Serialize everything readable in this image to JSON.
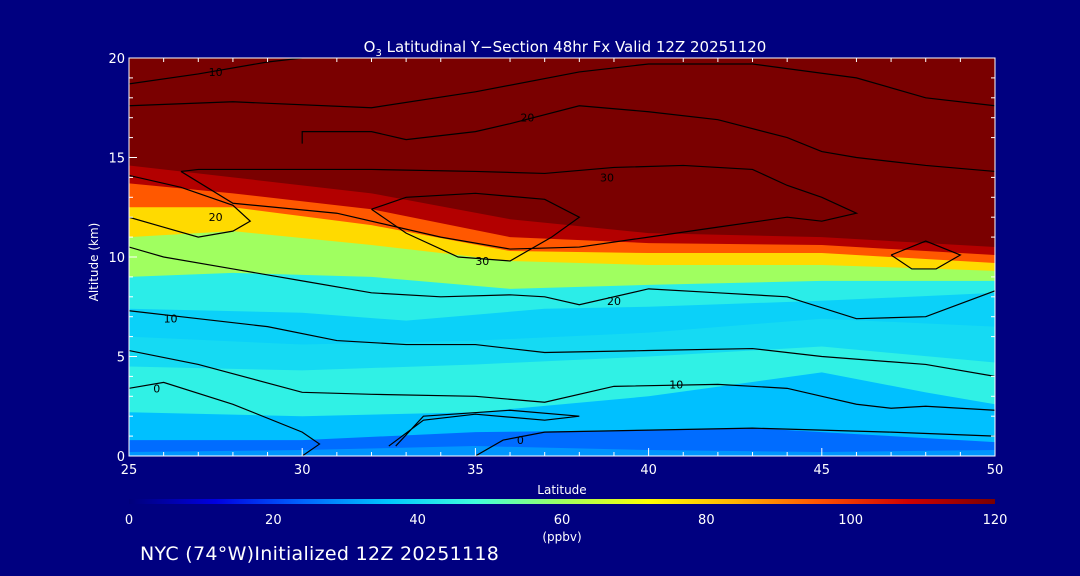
{
  "footer": "NYC (74°W)Initialized 12Z 20251118",
  "chart_data": {
    "type": "heatmap",
    "subtype": "filled-contour",
    "title": "O₃ Latitudinal Y−Section 48hr  Fx Valid 12Z 20251120",
    "title_main": "O",
    "title_sub": "3",
    "title_rest": " Latitudinal Y−Section 48hr  Fx Valid 12Z 20251120",
    "xlabel": "Latitude",
    "ylabel": "Altitude (km)",
    "xlim": [
      25,
      50
    ],
    "ylim": [
      0,
      20
    ],
    "xticks": [
      25,
      30,
      35,
      40,
      45,
      50
    ],
    "yticks": [
      0,
      5,
      10,
      15,
      20
    ],
    "colorbar": {
      "label": "(ppbv)",
      "range": [
        0,
        120
      ],
      "ticks": [
        0,
        20,
        40,
        60,
        80,
        100,
        120
      ],
      "colors": [
        "#00007a",
        "#0000e0",
        "#0064ff",
        "#00c8ff",
        "#40ffdc",
        "#a0ff60",
        "#ffff00",
        "#ffb400",
        "#ff5000",
        "#d00000",
        "#7a0000"
      ]
    },
    "bands": [
      {
        "ppbv": 30,
        "upper": [
          [
            25,
            0.2
          ],
          [
            30,
            0.3
          ],
          [
            35,
            0.5
          ],
          [
            40,
            0.3
          ],
          [
            45,
            0.2
          ],
          [
            50,
            0.3
          ]
        ]
      },
      {
        "ppbv": 25,
        "upper": [
          [
            25,
            0.8
          ],
          [
            30,
            0.8
          ],
          [
            35,
            1.2
          ],
          [
            40,
            1.3
          ],
          [
            43,
            1.4
          ],
          [
            46,
            1.1
          ],
          [
            50,
            0.7
          ]
        ]
      },
      {
        "ppbv": 35,
        "upper": [
          [
            25,
            2.2
          ],
          [
            30,
            2.0
          ],
          [
            35,
            2.2
          ],
          [
            40,
            3.0
          ],
          [
            45,
            4.2
          ],
          [
            48,
            3.2
          ],
          [
            50,
            2.6
          ]
        ]
      },
      {
        "ppbv": 45,
        "upper": [
          [
            25,
            4.5
          ],
          [
            30,
            4.3
          ],
          [
            35,
            4.6
          ],
          [
            40,
            5.0
          ],
          [
            45,
            5.5
          ],
          [
            50,
            4.7
          ]
        ]
      },
      {
        "ppbv": 40,
        "upper": [
          [
            25,
            6.0
          ],
          [
            30,
            5.6
          ],
          [
            35,
            5.8
          ],
          [
            40,
            6.2
          ],
          [
            45,
            6.9
          ],
          [
            50,
            6.5
          ]
        ]
      },
      {
        "ppbv": 38,
        "upper": [
          [
            25,
            7.4
          ],
          [
            30,
            7.2
          ],
          [
            33,
            6.8
          ],
          [
            37,
            7.4
          ],
          [
            40,
            7.5
          ],
          [
            45,
            7.8
          ],
          [
            50,
            8.2
          ]
        ]
      },
      {
        "ppbv": 44,
        "upper": [
          [
            25,
            9.0
          ],
          [
            28,
            9.2
          ],
          [
            32,
            9.0
          ],
          [
            36,
            8.4
          ],
          [
            40,
            8.6
          ],
          [
            45,
            8.8
          ],
          [
            50,
            8.8
          ]
        ]
      },
      {
        "ppbv": 60,
        "upper": [
          [
            25,
            11.0
          ],
          [
            28,
            11.3
          ],
          [
            32,
            10.6
          ],
          [
            36,
            9.8
          ],
          [
            40,
            9.6
          ],
          [
            45,
            9.6
          ],
          [
            50,
            9.3
          ]
        ]
      },
      {
        "ppbv": 78,
        "upper": [
          [
            25,
            12.5
          ],
          [
            28,
            12.5
          ],
          [
            32,
            11.6
          ],
          [
            36,
            10.3
          ],
          [
            40,
            10.2
          ],
          [
            45,
            10.2
          ],
          [
            50,
            9.7
          ]
        ]
      },
      {
        "ppbv": 95,
        "upper": [
          [
            25,
            13.7
          ],
          [
            28,
            13.2
          ],
          [
            32,
            12.4
          ],
          [
            36,
            11.0
          ],
          [
            40,
            10.7
          ],
          [
            45,
            10.6
          ],
          [
            50,
            10.1
          ]
        ]
      },
      {
        "ppbv": 112,
        "upper": [
          [
            25,
            14.6
          ],
          [
            28,
            14.0
          ],
          [
            32,
            13.2
          ],
          [
            36,
            11.9
          ],
          [
            40,
            11.2
          ],
          [
            45,
            11.0
          ],
          [
            50,
            10.5
          ]
        ]
      },
      {
        "ppbv": 120,
        "upper": [
          [
            25,
            20
          ],
          [
            50,
            20
          ]
        ]
      }
    ],
    "contours": [
      {
        "label": "10",
        "label_at": [
          27.5,
          19.3
        ],
        "points": [
          [
            25,
            18.7
          ],
          [
            27,
            19.2
          ],
          [
            29,
            19.8
          ],
          [
            30,
            20
          ]
        ]
      },
      {
        "label": "",
        "label_at": null,
        "points": [
          [
            25,
            17.6
          ],
          [
            28,
            17.8
          ],
          [
            32,
            17.5
          ],
          [
            35,
            18.3
          ],
          [
            38,
            19.3
          ],
          [
            40,
            19.7
          ],
          [
            43,
            19.7
          ],
          [
            46,
            19.0
          ],
          [
            48,
            18.0
          ],
          [
            50,
            17.6
          ]
        ]
      },
      {
        "label": "20",
        "label_at": [
          36.5,
          17.0
        ],
        "points": [
          [
            30,
            15.7
          ],
          [
            30,
            16.3
          ],
          [
            32,
            16.3
          ],
          [
            33,
            15.9
          ],
          [
            35,
            16.3
          ],
          [
            36,
            16.7
          ],
          [
            38,
            17.6
          ],
          [
            40,
            17.3
          ],
          [
            42,
            16.9
          ],
          [
            44,
            16.0
          ],
          [
            45,
            15.3
          ],
          [
            46,
            15.0
          ],
          [
            48,
            14.6
          ],
          [
            50,
            14.3
          ]
        ]
      },
      {
        "label": "20",
        "label_at": [
          27.5,
          12.0
        ],
        "points": [
          [
            25,
            14.1
          ],
          [
            26.5,
            13.5
          ],
          [
            28,
            12.6
          ],
          [
            28.5,
            11.8
          ],
          [
            28,
            11.3
          ],
          [
            27,
            11.0
          ],
          [
            26,
            11.5
          ],
          [
            25,
            12.0
          ]
        ]
      },
      {
        "label": "30",
        "label_at": [
          38.8,
          14.0
        ],
        "points": [
          [
            26.5,
            14.3
          ],
          [
            28,
            12.7
          ],
          [
            31,
            12.2
          ],
          [
            34,
            11.0
          ],
          [
            36,
            10.4
          ],
          [
            38,
            10.5
          ],
          [
            40,
            11.0
          ],
          [
            42,
            11.5
          ],
          [
            44,
            12.0
          ],
          [
            45,
            11.8
          ],
          [
            46,
            12.2
          ],
          [
            45,
            13.0
          ],
          [
            44,
            13.6
          ],
          [
            43,
            14.4
          ],
          [
            41,
            14.6
          ],
          [
            39,
            14.5
          ],
          [
            37,
            14.2
          ],
          [
            35,
            14.3
          ],
          [
            32,
            14.4
          ],
          [
            29,
            14.4
          ],
          [
            27,
            14.4
          ],
          [
            26.5,
            14.3
          ]
        ]
      },
      {
        "label": "30",
        "label_at": [
          35.2,
          9.8
        ],
        "points": [
          [
            32,
            12.4
          ],
          [
            33,
            13.0
          ],
          [
            35,
            13.2
          ],
          [
            37,
            12.9
          ],
          [
            38,
            12.0
          ],
          [
            37.2,
            11.0
          ],
          [
            36,
            9.8
          ],
          [
            34.5,
            10.0
          ],
          [
            33,
            11.2
          ],
          [
            32,
            12.4
          ]
        ]
      },
      {
        "label": "",
        "label_at": null,
        "points": [
          [
            47,
            10.1
          ],
          [
            48,
            10.8
          ],
          [
            49,
            10.1
          ],
          [
            48.3,
            9.4
          ],
          [
            47.6,
            9.4
          ],
          [
            47,
            10.1
          ]
        ]
      },
      {
        "label": "20",
        "label_at": [
          39.0,
          7.8
        ],
        "points": [
          [
            25,
            10.5
          ],
          [
            26,
            10.0
          ],
          [
            28,
            9.4
          ],
          [
            30,
            8.8
          ],
          [
            32,
            8.2
          ],
          [
            34,
            8.0
          ],
          [
            36,
            8.1
          ],
          [
            37,
            8.0
          ],
          [
            38,
            7.6
          ],
          [
            40,
            8.4
          ],
          [
            42,
            8.2
          ],
          [
            44,
            8.0
          ],
          [
            46,
            6.9
          ],
          [
            48,
            7.0
          ],
          [
            50,
            8.3
          ]
        ]
      },
      {
        "label": "10",
        "label_at": [
          26.2,
          6.9
        ],
        "points": [
          [
            25,
            7.3
          ],
          [
            27,
            6.9
          ],
          [
            29,
            6.5
          ],
          [
            31,
            5.8
          ],
          [
            33,
            5.6
          ],
          [
            35,
            5.6
          ],
          [
            37,
            5.2
          ],
          [
            40,
            5.3
          ],
          [
            43,
            5.4
          ],
          [
            45,
            5.0
          ],
          [
            48,
            4.6
          ],
          [
            50,
            4.0
          ]
        ]
      },
      {
        "label": "10",
        "label_at": [
          40.8,
          3.6
        ],
        "points": [
          [
            25,
            5.3
          ],
          [
            27,
            4.6
          ],
          [
            30,
            3.2
          ],
          [
            32,
            3.1
          ],
          [
            35,
            3.0
          ],
          [
            37,
            2.7
          ],
          [
            39,
            3.5
          ],
          [
            42,
            3.6
          ],
          [
            44,
            3.4
          ],
          [
            45,
            3.0
          ],
          [
            46,
            2.6
          ],
          [
            47,
            2.4
          ],
          [
            48,
            2.5
          ],
          [
            50,
            2.3
          ]
        ]
      },
      {
        "label": "0",
        "label_at": [
          25.8,
          3.4
        ],
        "points": [
          [
            25,
            3.4
          ],
          [
            26,
            3.7
          ],
          [
            28,
            2.6
          ],
          [
            30,
            1.2
          ],
          [
            30.5,
            0.6
          ],
          [
            30,
            0
          ]
        ]
      },
      {
        "label": "",
        "label_at": null,
        "points": [
          [
            35,
            0
          ],
          [
            35.8,
            0.8
          ],
          [
            37,
            1.2
          ],
          [
            40,
            1.3
          ],
          [
            43,
            1.4
          ],
          [
            47,
            1.2
          ],
          [
            50,
            1.0
          ]
        ]
      },
      {
        "label": "0",
        "label_at": [
          36.3,
          0.8
        ],
        "points": [
          [
            32.5,
            0.5
          ],
          [
            33.5,
            1.8
          ],
          [
            35,
            2.1
          ],
          [
            37,
            1.8
          ],
          [
            38,
            2.0
          ],
          [
            36,
            2.3
          ],
          [
            33.5,
            2.0
          ],
          [
            32.7,
            0.5
          ]
        ]
      }
    ]
  }
}
